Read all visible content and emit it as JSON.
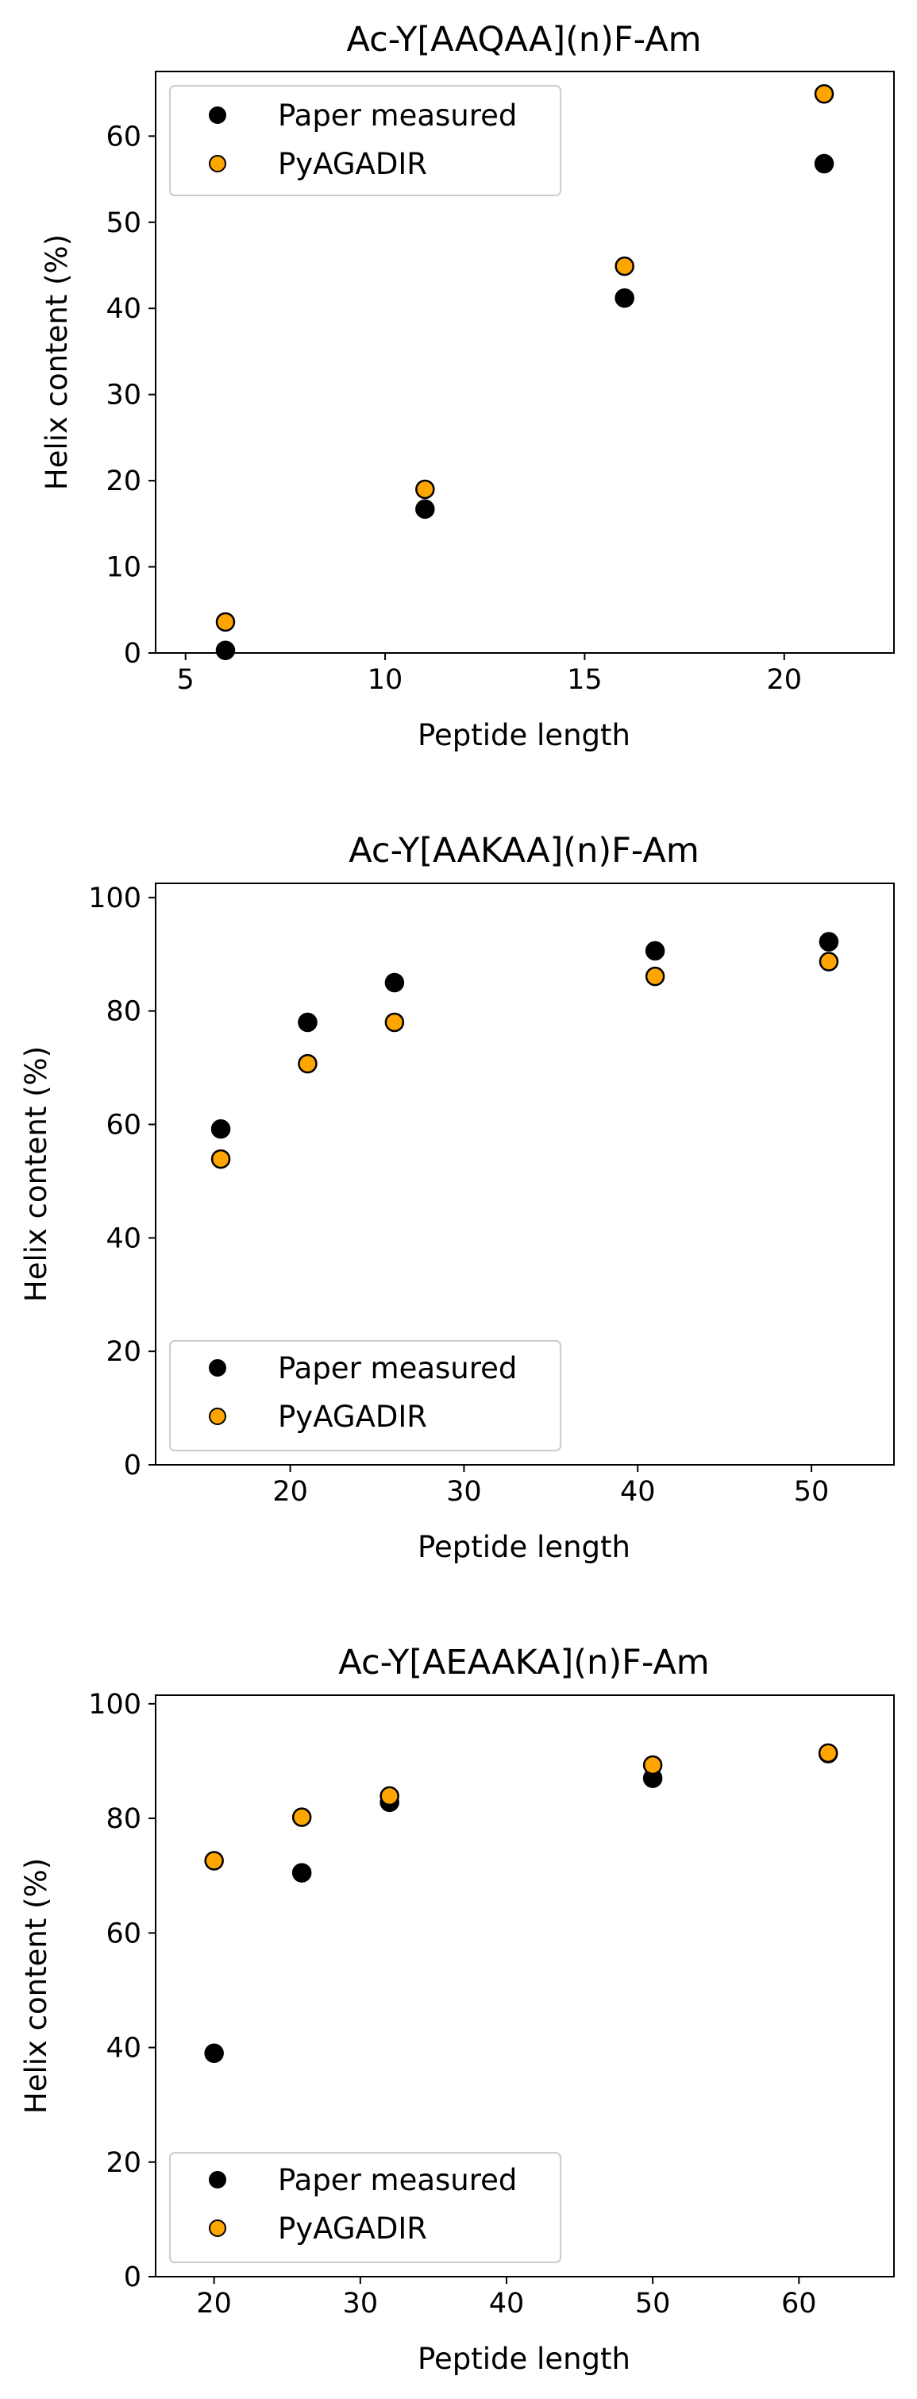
{
  "colors": {
    "measured": "#000000",
    "predicted": "#FFA500",
    "edge": "#000000"
  },
  "chart_data": [
    {
      "type": "scatter",
      "title": "Ac-Y[AAQAA](n)F-Am",
      "xlabel": "Peptide length",
      "ylabel": "Helix content (%)",
      "xlim": [
        4.25,
        22.75
      ],
      "ylim": [
        0,
        67.5
      ],
      "xticks": [
        5,
        10,
        15,
        20
      ],
      "yticks": [
        0,
        10,
        20,
        30,
        40,
        50,
        60
      ],
      "legend_position": "upper left",
      "series": [
        {
          "name": "Paper measured",
          "color_key": "measured",
          "x": [
            6,
            11,
            16,
            21
          ],
          "y": [
            0.3,
            16.7,
            41.2,
            56.8
          ]
        },
        {
          "name": "PyAGADIR",
          "color_key": "predicted",
          "x": [
            6,
            11,
            16,
            21
          ],
          "y": [
            3.6,
            19.0,
            44.9,
            64.9
          ]
        }
      ]
    },
    {
      "type": "scatter",
      "title": "Ac-Y[AAKAA](n)F-Am",
      "xlabel": "Peptide length",
      "ylabel": "Helix content (%)",
      "xlim": [
        12.25,
        54.75
      ],
      "ylim": [
        0,
        102.5
      ],
      "xticks": [
        20,
        30,
        40,
        50
      ],
      "yticks": [
        0,
        20,
        40,
        60,
        80,
        100
      ],
      "legend_position": "lower left",
      "series": [
        {
          "name": "Paper measured",
          "color_key": "measured",
          "x": [
            16,
            21,
            26,
            41,
            51
          ],
          "y": [
            59.2,
            78.0,
            85.0,
            90.6,
            92.2
          ]
        },
        {
          "name": "PyAGADIR",
          "color_key": "predicted",
          "x": [
            16,
            21,
            26,
            41,
            51
          ],
          "y": [
            53.9,
            70.7,
            78.0,
            86.1,
            88.7
          ]
        }
      ]
    },
    {
      "type": "scatter",
      "title": "Ac-Y[AEAAKA](n)F-Am",
      "xlabel": "Peptide length",
      "ylabel": "Helix content (%)",
      "xlim": [
        16,
        66.5
      ],
      "ylim": [
        0,
        101.5
      ],
      "xticks": [
        20,
        30,
        40,
        50,
        60
      ],
      "yticks": [
        0,
        20,
        40,
        60,
        80,
        100
      ],
      "legend_position": "lower left",
      "series": [
        {
          "name": "Paper measured",
          "color_key": "measured",
          "x": [
            20,
            26,
            32,
            50,
            62
          ],
          "y": [
            39.0,
            70.5,
            82.8,
            87.0,
            91.3
          ]
        },
        {
          "name": "PyAGADIR",
          "color_key": "predicted",
          "x": [
            20,
            26,
            32,
            50,
            62
          ],
          "y": [
            72.6,
            80.2,
            83.9,
            89.3,
            91.4
          ]
        }
      ]
    }
  ]
}
